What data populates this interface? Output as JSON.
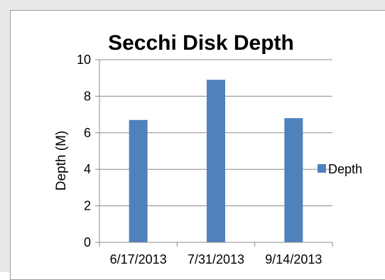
{
  "chart_data": {
    "type": "bar",
    "title": "Secchi Disk Depth",
    "xlabel": "",
    "ylabel": "Depth (M)",
    "categories": [
      "6/17/2013",
      "7/31/2013",
      "9/14/2013"
    ],
    "series": [
      {
        "name": "Depth",
        "values": [
          6.7,
          8.9,
          6.8
        ]
      }
    ],
    "ylim": [
      0,
      10
    ],
    "yticks": [
      "0",
      "2",
      "4",
      "6",
      "8",
      "10"
    ],
    "grid": true,
    "legend": "right",
    "colors": {
      "bar": "#4f81bd",
      "grid": "#8c8c8c",
      "axis": "#8c8c8c"
    }
  }
}
